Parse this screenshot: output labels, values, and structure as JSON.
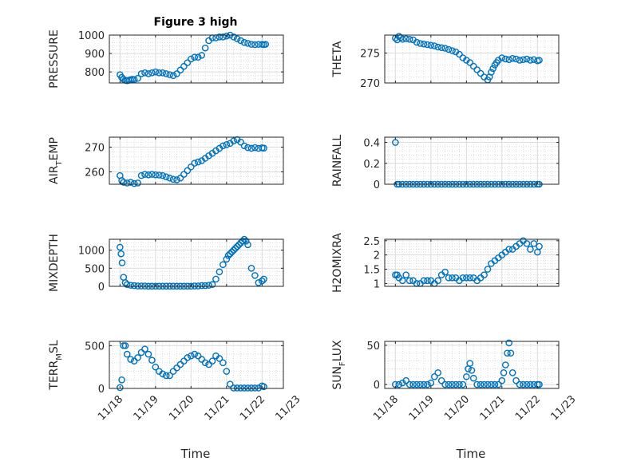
{
  "figure": {
    "title": "Figure 3 high"
  },
  "chart_data": [
    {
      "type": "scatter",
      "key": "pressure",
      "ylabel": "PRESSURE",
      "ylim": [
        740,
        1000
      ],
      "yticks": [
        800,
        900,
        1000
      ],
      "yticklabels": [
        "800",
        "900",
        "1000"
      ],
      "x": [
        0.0,
        0.05,
        0.1,
        0.15,
        0.2,
        0.25,
        0.3,
        0.35,
        0.4,
        0.5,
        0.6,
        0.7,
        0.8,
        0.9,
        1.0,
        1.1,
        1.2,
        1.3,
        1.4,
        1.5,
        1.6,
        1.7,
        1.8,
        1.9,
        2.0,
        2.1,
        2.2,
        2.3,
        2.4,
        2.5,
        2.6,
        2.7,
        2.8,
        2.9,
        3.0,
        3.1,
        3.2,
        3.3,
        3.4,
        3.5,
        3.6,
        3.7,
        3.8,
        3.9,
        4.0,
        4.05,
        4.1
      ],
      "y": [
        785,
        770,
        760,
        755,
        752,
        755,
        758,
        760,
        758,
        765,
        790,
        795,
        790,
        795,
        800,
        795,
        795,
        790,
        785,
        780,
        790,
        810,
        830,
        850,
        870,
        880,
        880,
        890,
        930,
        970,
        985,
        985,
        990,
        990,
        995,
        1000,
        990,
        980,
        970,
        960,
        955,
        950,
        948,
        950,
        950,
        948,
        950
      ]
    },
    {
      "type": "scatter",
      "key": "theta",
      "ylabel": "THETA",
      "ylim": [
        270,
        278
      ],
      "yticks": [
        270,
        275
      ],
      "yticklabels": [
        "270",
        "275"
      ],
      "x": [
        0.0,
        0.05,
        0.1,
        0.15,
        0.2,
        0.3,
        0.4,
        0.5,
        0.6,
        0.7,
        0.8,
        0.9,
        1.0,
        1.1,
        1.2,
        1.3,
        1.4,
        1.5,
        1.6,
        1.7,
        1.8,
        1.9,
        2.0,
        2.1,
        2.2,
        2.3,
        2.4,
        2.5,
        2.6,
        2.65,
        2.7,
        2.75,
        2.8,
        2.85,
        2.9,
        3.0,
        3.1,
        3.2,
        3.3,
        3.4,
        3.5,
        3.6,
        3.7,
        3.8,
        3.9,
        4.0,
        4.05
      ],
      "y": [
        277.5,
        277.2,
        277.8,
        277.6,
        277.3,
        277.4,
        277.3,
        277.2,
        276.8,
        276.6,
        276.5,
        276.4,
        276.3,
        276.2,
        276.0,
        275.9,
        275.8,
        275.6,
        275.4,
        275.2,
        274.8,
        274.2,
        273.8,
        273.4,
        272.8,
        272.2,
        271.6,
        271.0,
        270.5,
        271.0,
        271.8,
        272.4,
        273.0,
        273.4,
        273.8,
        274.2,
        274.0,
        273.9,
        274.1,
        274.0,
        273.8,
        273.9,
        274.0,
        273.8,
        273.9,
        273.7,
        273.8
      ]
    },
    {
      "type": "scatter",
      "key": "air_temp",
      "ylabel": "AIR",
      "ylabel_sub": "T",
      "ylabel_tail": "EMP",
      "ylim": [
        255,
        274
      ],
      "yticks": [
        260,
        270
      ],
      "yticklabels": [
        "260",
        "270"
      ],
      "x": [
        0.0,
        0.05,
        0.1,
        0.2,
        0.3,
        0.4,
        0.5,
        0.6,
        0.7,
        0.8,
        0.9,
        1.0,
        1.1,
        1.2,
        1.3,
        1.4,
        1.5,
        1.6,
        1.7,
        1.8,
        1.9,
        2.0,
        2.1,
        2.2,
        2.3,
        2.4,
        2.5,
        2.6,
        2.7,
        2.8,
        2.9,
        3.0,
        3.1,
        3.2,
        3.3,
        3.4,
        3.5,
        3.6,
        3.7,
        3.8,
        3.9,
        4.0,
        4.05
      ],
      "y": [
        258.5,
        256.5,
        255.8,
        255.5,
        255.8,
        255.3,
        255.5,
        258.5,
        259.0,
        258.8,
        259.0,
        258.8,
        258.7,
        258.5,
        258.0,
        257.5,
        257.0,
        256.8,
        257.5,
        259.0,
        260.5,
        262.0,
        263.5,
        264.0,
        264.5,
        265.5,
        266.5,
        267.5,
        268.5,
        269.5,
        270.5,
        271.0,
        271.5,
        272.5,
        273.0,
        272.0,
        270.5,
        269.8,
        269.5,
        269.8,
        269.5,
        269.7,
        269.6
      ]
    },
    {
      "type": "scatter",
      "key": "rainfall",
      "ylabel": "RAINFALL",
      "ylim": [
        0,
        0.45
      ],
      "yticks": [
        0,
        0.2,
        0.4
      ],
      "yticklabels": [
        "0",
        "0.2",
        "0.4"
      ],
      "x": [
        0.0,
        0.05,
        0.1,
        0.2,
        0.3,
        0.4,
        0.5,
        0.6,
        0.7,
        0.8,
        0.9,
        1.0,
        1.1,
        1.2,
        1.3,
        1.4,
        1.5,
        1.6,
        1.7,
        1.8,
        1.9,
        2.0,
        2.1,
        2.2,
        2.3,
        2.4,
        2.5,
        2.6,
        2.7,
        2.8,
        2.9,
        3.0,
        3.1,
        3.2,
        3.3,
        3.4,
        3.5,
        3.6,
        3.7,
        3.8,
        3.9,
        4.0,
        4.05
      ],
      "y": [
        0.4,
        0,
        0,
        0,
        0,
        0,
        0,
        0,
        0,
        0,
        0,
        0,
        0,
        0,
        0,
        0,
        0,
        0,
        0,
        0,
        0,
        0,
        0,
        0,
        0,
        0,
        0,
        0,
        0,
        0,
        0,
        0,
        0,
        0,
        0,
        0,
        0,
        0,
        0,
        0,
        0,
        0,
        0
      ]
    },
    {
      "type": "scatter",
      "key": "mixdepth",
      "ylabel": "MIXDEPTH",
      "ylim": [
        0,
        1300
      ],
      "yticks": [
        0,
        500,
        1000
      ],
      "yticklabels": [
        "0",
        "500",
        "1000"
      ],
      "x": [
        0.0,
        0.03,
        0.06,
        0.1,
        0.15,
        0.2,
        0.3,
        0.4,
        0.5,
        0.6,
        0.7,
        0.8,
        0.9,
        1.0,
        1.1,
        1.2,
        1.3,
        1.4,
        1.5,
        1.6,
        1.7,
        1.8,
        1.9,
        2.0,
        2.1,
        2.2,
        2.3,
        2.4,
        2.5,
        2.6,
        2.7,
        2.8,
        2.9,
        3.0,
        3.05,
        3.1,
        3.15,
        3.2,
        3.25,
        3.3,
        3.35,
        3.4,
        3.45,
        3.5,
        3.55,
        3.6,
        3.7,
        3.8,
        3.9,
        4.0,
        4.05
      ],
      "y": [
        1080,
        900,
        650,
        250,
        100,
        50,
        30,
        20,
        10,
        10,
        10,
        5,
        5,
        5,
        5,
        5,
        5,
        5,
        5,
        5,
        5,
        5,
        5,
        5,
        10,
        10,
        20,
        20,
        30,
        50,
        200,
        400,
        600,
        750,
        850,
        900,
        950,
        1000,
        1050,
        1100,
        1150,
        1200,
        1250,
        1300,
        1250,
        1150,
        500,
        300,
        100,
        150,
        200
      ]
    },
    {
      "type": "scatter",
      "key": "h2omixra",
      "ylabel": "H2OMIXRA",
      "ylim": [
        0.9,
        2.55
      ],
      "yticks": [
        1,
        1.5,
        2,
        2.5
      ],
      "yticklabels": [
        "1",
        "1.5",
        "2",
        "2.5"
      ],
      "x": [
        0.0,
        0.05,
        0.1,
        0.2,
        0.3,
        0.4,
        0.5,
        0.6,
        0.7,
        0.8,
        0.9,
        1.0,
        1.1,
        1.2,
        1.3,
        1.4,
        1.5,
        1.6,
        1.7,
        1.8,
        1.9,
        2.0,
        2.1,
        2.2,
        2.3,
        2.4,
        2.5,
        2.6,
        2.7,
        2.8,
        2.9,
        3.0,
        3.1,
        3.2,
        3.3,
        3.4,
        3.5,
        3.6,
        3.7,
        3.8,
        3.9,
        4.0,
        4.05
      ],
      "y": [
        1.3,
        1.3,
        1.2,
        1.1,
        1.3,
        1.1,
        1.1,
        1.0,
        1.0,
        1.1,
        1.1,
        1.1,
        1.0,
        1.1,
        1.3,
        1.4,
        1.2,
        1.2,
        1.2,
        1.1,
        1.2,
        1.2,
        1.2,
        1.2,
        1.1,
        1.2,
        1.3,
        1.5,
        1.7,
        1.8,
        1.9,
        2.0,
        2.1,
        2.2,
        2.2,
        2.3,
        2.4,
        2.5,
        2.4,
        2.2,
        2.4,
        2.1,
        2.3
      ]
    },
    {
      "type": "scatter",
      "key": "terr_msl",
      "ylabel": "TERR",
      "ylabel_sub": "M",
      "ylabel_tail": "SL",
      "ylim": [
        0,
        550
      ],
      "yticks": [
        0,
        500
      ],
      "yticklabels": [
        "0",
        "500"
      ],
      "x": [
        0.0,
        0.05,
        0.1,
        0.15,
        0.2,
        0.3,
        0.4,
        0.5,
        0.6,
        0.7,
        0.8,
        0.9,
        1.0,
        1.1,
        1.2,
        1.3,
        1.4,
        1.5,
        1.6,
        1.7,
        1.8,
        1.9,
        2.0,
        2.1,
        2.2,
        2.3,
        2.4,
        2.5,
        2.6,
        2.7,
        2.8,
        2.9,
        3.0,
        3.1,
        3.2,
        3.3,
        3.4,
        3.5,
        3.6,
        3.7,
        3.8,
        3.9,
        4.0,
        4.05
      ],
      "y": [
        10,
        100,
        500,
        500,
        400,
        340,
        320,
        360,
        420,
        460,
        400,
        330,
        250,
        200,
        170,
        150,
        150,
        200,
        240,
        280,
        320,
        360,
        380,
        400,
        380,
        340,
        300,
        280,
        320,
        380,
        350,
        300,
        200,
        50,
        5,
        5,
        5,
        5,
        5,
        5,
        5,
        5,
        30,
        20
      ]
    },
    {
      "type": "scatter",
      "key": "sun_flux",
      "ylabel": "SUN",
      "ylabel_sub": "F",
      "ylabel_tail": "LUX",
      "ylim": [
        -5,
        55
      ],
      "yticks": [
        0,
        50
      ],
      "yticklabels": [
        "0",
        "50"
      ],
      "x": [
        0.0,
        0.1,
        0.2,
        0.3,
        0.4,
        0.5,
        0.6,
        0.7,
        0.8,
        0.9,
        1.0,
        1.1,
        1.2,
        1.3,
        1.4,
        1.5,
        1.6,
        1.7,
        1.8,
        1.9,
        2.0,
        2.05,
        2.1,
        2.15,
        2.2,
        2.3,
        2.4,
        2.5,
        2.6,
        2.7,
        2.8,
        2.9,
        3.0,
        3.05,
        3.1,
        3.15,
        3.2,
        3.25,
        3.3,
        3.4,
        3.5,
        3.6,
        3.7,
        3.8,
        3.9,
        4.0,
        4.05
      ],
      "y": [
        0,
        0,
        2,
        5,
        0,
        0,
        0,
        0,
        0,
        0,
        2,
        10,
        15,
        5,
        0,
        0,
        0,
        0,
        0,
        0,
        10,
        20,
        27,
        18,
        8,
        0,
        0,
        0,
        0,
        0,
        0,
        0,
        5,
        15,
        25,
        40,
        53,
        40,
        15,
        5,
        0,
        0,
        0,
        0,
        0,
        0,
        0
      ]
    }
  ],
  "axes_common": {
    "xlim": [
      -0.3,
      4.6
    ],
    "xticks": [
      0,
      1,
      2,
      3,
      4,
      5
    ],
    "xticklabels": [
      "11/18",
      "11/19",
      "11/20",
      "11/21",
      "11/22",
      "11/23"
    ],
    "xlabel": "Time"
  }
}
